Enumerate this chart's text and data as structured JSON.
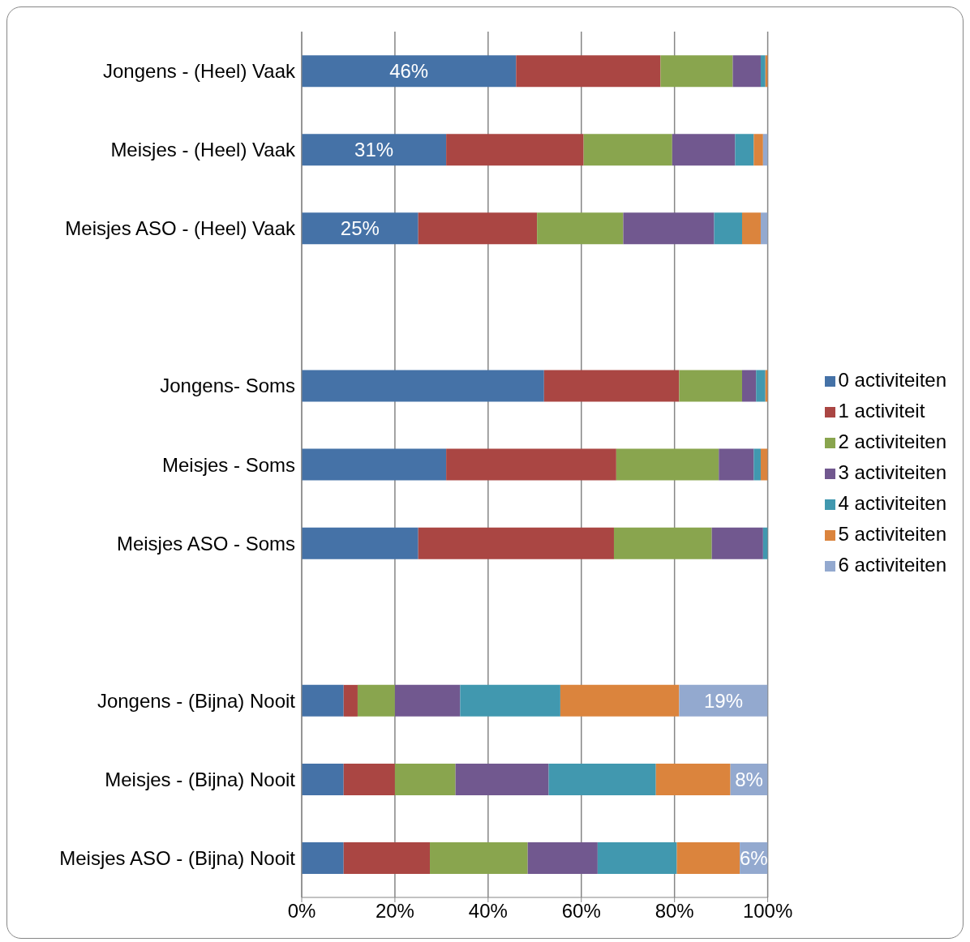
{
  "chart_data": {
    "type": "bar",
    "orientation": "horizontal",
    "stacked": true,
    "categories": [
      "Jongens - (Heel) Vaak",
      "Meisjes - (Heel) Vaak",
      "Meisjes ASO - (Heel) Vaak",
      null,
      "Jongens- Soms",
      "Meisjes - Soms",
      "Meisjes ASO - Soms",
      null,
      "Jongens - (Bijna) Nooit",
      "Meisjes - (Bijna) Nooit",
      "Meisjes ASO - (Bijna) Nooit"
    ],
    "series": [
      {
        "name": "0 activiteiten",
        "color": "#4572a7",
        "values": [
          46,
          31,
          25,
          null,
          52,
          31,
          25,
          null,
          9,
          9,
          9
        ],
        "value_labels": [
          "46%",
          "31%",
          "25%",
          null,
          null,
          null,
          null,
          null,
          null,
          null,
          null
        ]
      },
      {
        "name": "1 activiteit",
        "color": "#aa4643",
        "values": [
          31,
          29.5,
          25.5,
          null,
          29,
          36.5,
          42,
          null,
          3,
          11,
          18.5
        ]
      },
      {
        "name": "2 activiteiten",
        "color": "#89a54e",
        "values": [
          15.5,
          19,
          18.5,
          null,
          13.5,
          22,
          21,
          null,
          8,
          13,
          21
        ]
      },
      {
        "name": "3 activiteiten",
        "color": "#71588f",
        "values": [
          6,
          13.5,
          19.5,
          null,
          3,
          7.5,
          11,
          null,
          14,
          20,
          15
        ]
      },
      {
        "name": "4 activiteiten",
        "color": "#4198af",
        "values": [
          1,
          4,
          6,
          null,
          2,
          1.5,
          1,
          null,
          21.5,
          23,
          17
        ]
      },
      {
        "name": "5 activiteiten",
        "color": "#db843d",
        "values": [
          0.5,
          2,
          4,
          null,
          0.5,
          1.5,
          0,
          null,
          25.5,
          16,
          13.5
        ]
      },
      {
        "name": "6 activiteiten",
        "color": "#93a9cf",
        "values": [
          0,
          1,
          1.5,
          null,
          0,
          0,
          0,
          null,
          19,
          8,
          6
        ],
        "value_labels": [
          null,
          null,
          null,
          null,
          null,
          null,
          null,
          null,
          "19%",
          "8%",
          "6%"
        ]
      }
    ],
    "xlim": [
      0,
      100
    ],
    "xticks": [
      {
        "value": 0,
        "label": "0%"
      },
      {
        "value": 20,
        "label": "20%"
      },
      {
        "value": 40,
        "label": "40%"
      },
      {
        "value": 60,
        "label": "60%"
      },
      {
        "value": 80,
        "label": "80%"
      },
      {
        "value": 100,
        "label": "100%"
      }
    ],
    "grid": "x",
    "legend": "right"
  }
}
